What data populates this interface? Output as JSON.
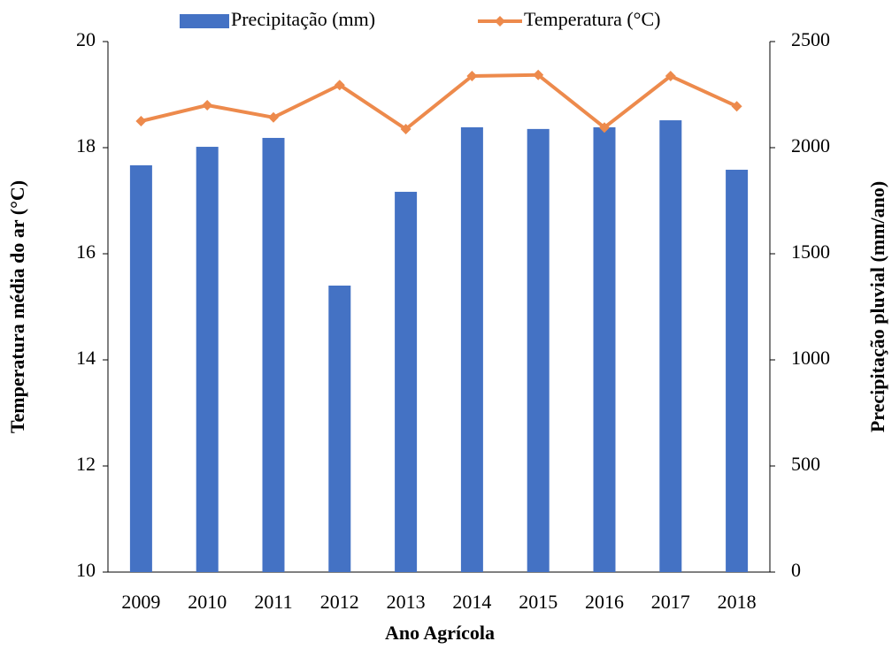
{
  "chart_data": {
    "type": "combo",
    "x_label": "Ano Agrícola",
    "y_label": "Temperatura média do ar (°C)",
    "y2_label": "Precipitação pluvial (mm/ano)",
    "categories": [
      "2009",
      "2010",
      "2011",
      "2012",
      "2013",
      "2014",
      "2015",
      "2016",
      "2017",
      "2018"
    ],
    "ylim": [
      10,
      20
    ],
    "yticks": [
      10,
      12,
      14,
      16,
      18,
      20
    ],
    "y2lim": [
      0,
      2500
    ],
    "y2ticks": [
      0,
      500,
      1000,
      1500,
      2000,
      2500
    ],
    "series": [
      {
        "name": "Precipitação (mm)",
        "type": "bar",
        "axis": "y2",
        "color": "#4472c4",
        "values": [
          1917,
          2004,
          2046,
          1350,
          1792,
          2096,
          2088,
          2096,
          2129,
          1896
        ]
      },
      {
        "name": "Temperatura (°C)",
        "type": "line",
        "axis": "y",
        "color": "#ed8a4c",
        "values": [
          18.5,
          18.8,
          18.57,
          19.18,
          18.35,
          19.35,
          19.37,
          18.38,
          19.35,
          18.78
        ]
      }
    ]
  }
}
